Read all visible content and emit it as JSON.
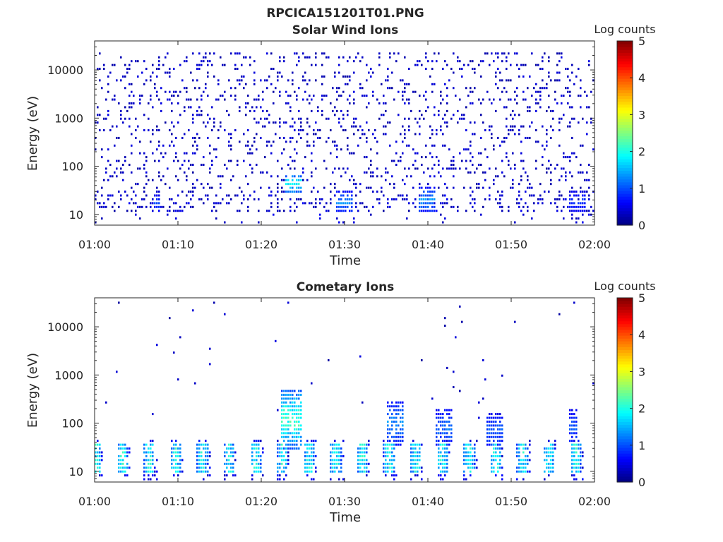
{
  "figure": {
    "filename": "RPCICA151201T01.PNG"
  },
  "chart_data": [
    {
      "type": "heatmap",
      "title": "Solar Wind Ions",
      "xlabel": "Time",
      "ylabel": "Energy (eV)",
      "x_ticks": [
        "01:00",
        "01:10",
        "01:20",
        "01:30",
        "01:40",
        "01:50",
        "02:00"
      ],
      "xlim": [
        "01:00",
        "02:00"
      ],
      "y_scale": "log",
      "y_ticks": [
        10,
        100,
        1000,
        10000
      ],
      "y_tick_labels": [
        "10",
        "100",
        "1000",
        "10000"
      ],
      "ylim": [
        6,
        40000
      ],
      "colorbar": {
        "label": "Log counts",
        "range": [
          0,
          5
        ],
        "ticks": [
          "0",
          "1",
          "2",
          "3",
          "4",
          "5"
        ],
        "colormap": "jet"
      },
      "features": [
        {
          "time": "01:23-01:25",
          "energy_eV": [
            25,
            70
          ],
          "log_counts": 2.2,
          "note": "brightest burst"
        },
        {
          "time": "01:29-01:31",
          "energy_eV": [
            10,
            30
          ],
          "log_counts": 1.5
        },
        {
          "time": "01:39-01:41",
          "energy_eV": [
            10,
            35
          ],
          "log_counts": 1.6
        },
        {
          "time": "01:07-01:08",
          "energy_eV": [
            10,
            25
          ],
          "log_counts": 1.2
        },
        {
          "time": "01:57-01:59",
          "energy_eV": [
            10,
            30
          ],
          "log_counts": 1.1
        }
      ],
      "background": {
        "energy_eV": [
          10,
          20000
        ],
        "log_counts": 0.2,
        "note": "sparse scattered single counts"
      }
    },
    {
      "type": "heatmap",
      "title": "Cometary Ions",
      "xlabel": "Time",
      "ylabel": "Energy (eV)",
      "x_ticks": [
        "01:00",
        "01:10",
        "01:20",
        "01:30",
        "01:40",
        "01:50",
        "02:00"
      ],
      "xlim": [
        "01:00",
        "02:00"
      ],
      "y_scale": "log",
      "y_ticks": [
        10,
        100,
        1000,
        10000
      ],
      "y_tick_labels": [
        "10",
        "100",
        "1000",
        "10000"
      ],
      "ylim": [
        6,
        40000
      ],
      "colorbar": {
        "label": "Log counts",
        "range": [
          0,
          5
        ],
        "ticks": [
          "0",
          "1",
          "2",
          "3",
          "4",
          "5"
        ],
        "colormap": "jet"
      },
      "periodic_low_energy_bands": {
        "period_min": 3.2,
        "energy_eV": [
          8,
          40
        ],
        "peak_log_counts": 2.3
      },
      "features": [
        {
          "time": "01:22.5-01:25",
          "energy_eV": [
            25,
            500
          ],
          "log_counts": 2.6,
          "note": "broad burst"
        },
        {
          "time": "01:35-01:37",
          "energy_eV": [
            30,
            300
          ],
          "log_counts": 1.6,
          "note": "dispersed streak"
        },
        {
          "time": "01:41-01:43",
          "energy_eV": [
            30,
            200
          ],
          "log_counts": 1.4
        },
        {
          "time": "01:47-01:49",
          "energy_eV": [
            30,
            150
          ],
          "log_counts": 1.3
        },
        {
          "time": "01:57-01:58",
          "energy_eV": [
            30,
            200
          ],
          "log_counts": 1.2
        }
      ],
      "background": {
        "energy_eV": [
          100,
          30000
        ],
        "log_counts": 0.1,
        "note": "very sparse isolated counts"
      }
    }
  ]
}
